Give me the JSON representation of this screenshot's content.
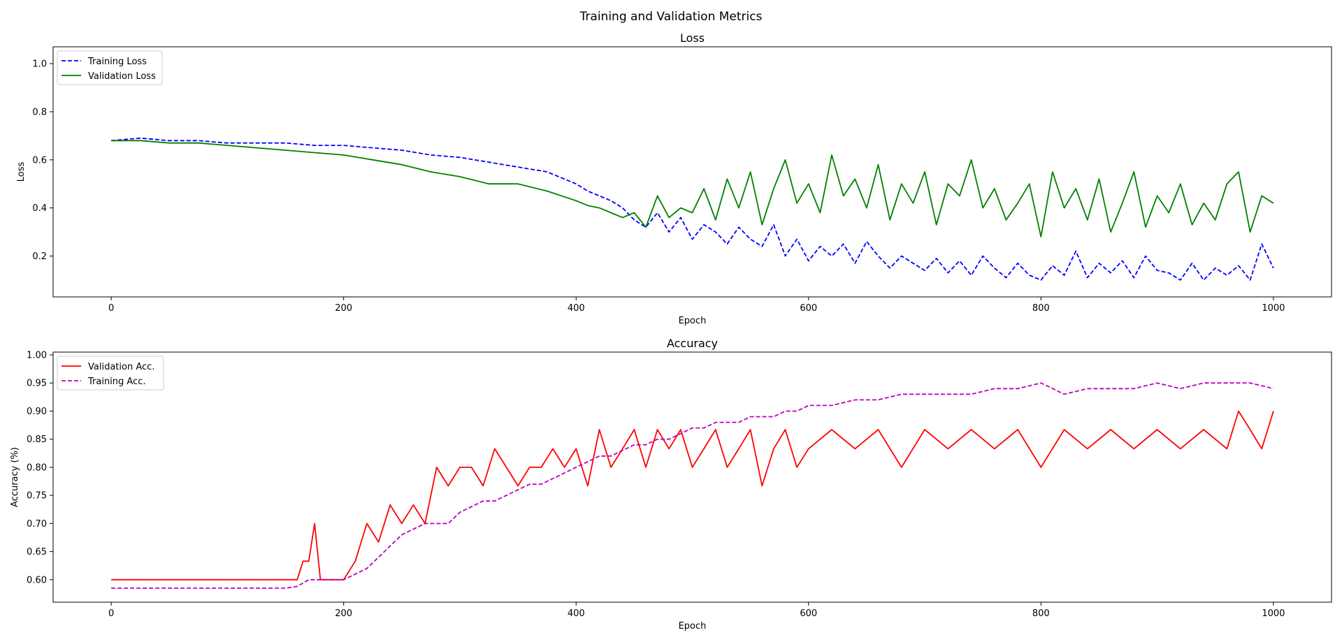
{
  "figure": {
    "suptitle": "Training and Validation Metrics"
  },
  "chart_data": [
    {
      "type": "line",
      "title": "Loss",
      "xlabel": "Epoch",
      "ylabel": "Loss",
      "xlim": [
        -50,
        1050
      ],
      "ylim": [
        0.03,
        1.07
      ],
      "xticks": [
        0,
        200,
        400,
        600,
        800,
        1000
      ],
      "yticks": [
        0.2,
        0.4,
        0.6,
        0.8,
        1.0
      ],
      "ytick_labels": [
        "0.2",
        "0.4",
        "0.6",
        "0.8",
        "1.0"
      ],
      "grid": false,
      "legend": "top-left",
      "series": [
        {
          "name": "Training Loss",
          "color": "#0000ff",
          "style": "dashed",
          "x": [
            0,
            25,
            50,
            75,
            100,
            125,
            150,
            175,
            200,
            225,
            250,
            275,
            300,
            325,
            350,
            375,
            400,
            410,
            420,
            430,
            440,
            450,
            460,
            470,
            480,
            490,
            500,
            510,
            520,
            530,
            540,
            550,
            560,
            570,
            580,
            590,
            600,
            610,
            620,
            630,
            640,
            650,
            660,
            670,
            680,
            690,
            700,
            710,
            720,
            730,
            740,
            750,
            760,
            770,
            780,
            790,
            800,
            810,
            820,
            830,
            840,
            850,
            860,
            870,
            880,
            890,
            900,
            910,
            920,
            930,
            940,
            950,
            960,
            970,
            980,
            990,
            1000
          ],
          "y": [
            0.68,
            0.69,
            0.68,
            0.68,
            0.67,
            0.67,
            0.67,
            0.66,
            0.66,
            0.65,
            0.64,
            0.62,
            0.61,
            0.59,
            0.57,
            0.55,
            0.5,
            0.47,
            0.45,
            0.43,
            0.4,
            0.35,
            0.32,
            0.38,
            0.3,
            0.36,
            0.27,
            0.33,
            0.3,
            0.25,
            0.32,
            0.27,
            0.24,
            0.33,
            0.2,
            0.27,
            0.18,
            0.24,
            0.2,
            0.25,
            0.17,
            0.26,
            0.2,
            0.15,
            0.2,
            0.17,
            0.14,
            0.19,
            0.13,
            0.18,
            0.12,
            0.2,
            0.15,
            0.11,
            0.17,
            0.12,
            0.1,
            0.16,
            0.12,
            0.22,
            0.11,
            0.17,
            0.13,
            0.18,
            0.11,
            0.2,
            0.14,
            0.13,
            0.1,
            0.17,
            0.1,
            0.15,
            0.12,
            0.16,
            0.1,
            0.25,
            0.15
          ]
        },
        {
          "name": "Validation Loss",
          "color": "#008000",
          "style": "solid",
          "x": [
            0,
            25,
            50,
            75,
            100,
            125,
            150,
            175,
            200,
            225,
            250,
            275,
            300,
            325,
            350,
            375,
            400,
            410,
            420,
            430,
            440,
            450,
            460,
            470,
            480,
            490,
            500,
            510,
            520,
            530,
            540,
            550,
            560,
            570,
            580,
            590,
            600,
            610,
            620,
            630,
            640,
            650,
            660,
            670,
            680,
            690,
            700,
            710,
            720,
            730,
            740,
            750,
            760,
            770,
            780,
            790,
            800,
            810,
            820,
            830,
            840,
            850,
            860,
            870,
            880,
            890,
            900,
            910,
            920,
            930,
            940,
            950,
            960,
            970,
            980,
            990,
            1000
          ],
          "y": [
            0.68,
            0.68,
            0.67,
            0.67,
            0.66,
            0.65,
            0.64,
            0.63,
            0.62,
            0.6,
            0.58,
            0.55,
            0.53,
            0.5,
            0.5,
            0.47,
            0.43,
            0.41,
            0.4,
            0.38,
            0.36,
            0.38,
            0.32,
            0.45,
            0.36,
            0.4,
            0.38,
            0.48,
            0.35,
            0.52,
            0.4,
            0.55,
            0.33,
            0.48,
            0.6,
            0.42,
            0.5,
            0.38,
            0.62,
            0.45,
            0.52,
            0.4,
            0.58,
            0.35,
            0.5,
            0.42,
            0.55,
            0.33,
            0.5,
            0.45,
            0.6,
            0.4,
            0.48,
            0.35,
            0.42,
            0.5,
            0.28,
            0.55,
            0.4,
            0.48,
            0.35,
            0.52,
            0.3,
            0.42,
            0.55,
            0.32,
            0.45,
            0.38,
            0.5,
            0.33,
            0.42,
            0.35,
            0.5,
            0.55,
            0.3,
            0.45,
            0.42
          ]
        }
      ]
    },
    {
      "type": "line",
      "title": "Accuracy",
      "xlabel": "Epoch",
      "ylabel": "Accuracy (%)",
      "xlim": [
        -50,
        1050
      ],
      "ylim": [
        0.56,
        1.005
      ],
      "xticks": [
        0,
        200,
        400,
        600,
        800,
        1000
      ],
      "yticks": [
        0.6,
        0.65,
        0.7,
        0.75,
        0.8,
        0.85,
        0.9,
        0.95,
        1.0
      ],
      "ytick_labels": [
        "0.60",
        "0.65",
        "0.70",
        "0.75",
        "0.80",
        "0.85",
        "0.90",
        "0.95",
        "1.00"
      ],
      "grid": false,
      "legend": "top-left",
      "series": [
        {
          "name": "Validation Acc.",
          "color": "#ff0000",
          "style": "solid",
          "x": [
            0,
            25,
            50,
            75,
            100,
            125,
            150,
            160,
            165,
            170,
            175,
            180,
            190,
            200,
            210,
            220,
            230,
            240,
            250,
            260,
            270,
            280,
            290,
            300,
            310,
            320,
            330,
            340,
            350,
            360,
            370,
            380,
            390,
            400,
            410,
            420,
            430,
            440,
            450,
            460,
            470,
            480,
            490,
            500,
            510,
            520,
            530,
            540,
            550,
            560,
            570,
            580,
            590,
            600,
            620,
            640,
            660,
            680,
            700,
            720,
            740,
            760,
            780,
            800,
            820,
            840,
            860,
            880,
            900,
            920,
            940,
            960,
            970,
            980,
            990,
            1000
          ],
          "y": [
            0.6,
            0.6,
            0.6,
            0.6,
            0.6,
            0.6,
            0.6,
            0.6,
            0.633,
            0.633,
            0.7,
            0.6,
            0.6,
            0.6,
            0.633,
            0.7,
            0.667,
            0.733,
            0.7,
            0.733,
            0.7,
            0.8,
            0.767,
            0.8,
            0.8,
            0.767,
            0.833,
            0.8,
            0.767,
            0.8,
            0.8,
            0.833,
            0.8,
            0.833,
            0.767,
            0.867,
            0.8,
            0.833,
            0.867,
            0.8,
            0.867,
            0.833,
            0.867,
            0.8,
            0.833,
            0.867,
            0.8,
            0.833,
            0.867,
            0.767,
            0.833,
            0.867,
            0.8,
            0.833,
            0.867,
            0.833,
            0.867,
            0.8,
            0.867,
            0.833,
            0.867,
            0.833,
            0.867,
            0.8,
            0.867,
            0.833,
            0.867,
            0.833,
            0.867,
            0.833,
            0.867,
            0.833,
            0.9,
            0.867,
            0.833,
            0.9
          ]
        },
        {
          "name": "Training Acc.",
          "color": "#bf00bf",
          "style": "dashed",
          "x": [
            0,
            25,
            50,
            75,
            100,
            125,
            150,
            160,
            170,
            180,
            190,
            200,
            210,
            220,
            230,
            240,
            250,
            260,
            270,
            280,
            290,
            300,
            310,
            320,
            330,
            340,
            350,
            360,
            370,
            380,
            390,
            400,
            410,
            420,
            430,
            440,
            450,
            460,
            470,
            480,
            490,
            500,
            510,
            520,
            530,
            540,
            550,
            560,
            570,
            580,
            590,
            600,
            620,
            640,
            660,
            680,
            700,
            720,
            740,
            760,
            780,
            800,
            820,
            840,
            860,
            880,
            900,
            920,
            940,
            960,
            980,
            1000
          ],
          "y": [
            0.585,
            0.585,
            0.585,
            0.585,
            0.585,
            0.585,
            0.585,
            0.588,
            0.6,
            0.6,
            0.6,
            0.6,
            0.61,
            0.62,
            0.64,
            0.66,
            0.68,
            0.69,
            0.7,
            0.7,
            0.7,
            0.72,
            0.73,
            0.74,
            0.74,
            0.75,
            0.76,
            0.77,
            0.77,
            0.78,
            0.79,
            0.8,
            0.81,
            0.82,
            0.82,
            0.83,
            0.84,
            0.84,
            0.85,
            0.85,
            0.86,
            0.87,
            0.87,
            0.88,
            0.88,
            0.88,
            0.89,
            0.89,
            0.89,
            0.9,
            0.9,
            0.91,
            0.91,
            0.92,
            0.92,
            0.93,
            0.93,
            0.93,
            0.93,
            0.94,
            0.94,
            0.95,
            0.93,
            0.94,
            0.94,
            0.94,
            0.95,
            0.94,
            0.95,
            0.95,
            0.95,
            0.94
          ]
        }
      ]
    }
  ]
}
